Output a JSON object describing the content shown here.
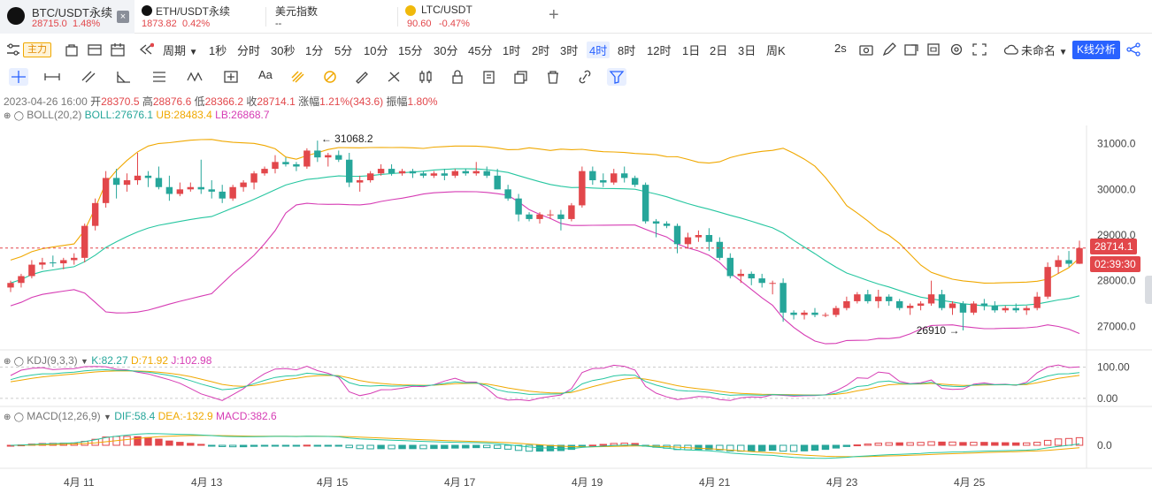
{
  "tabs": [
    {
      "name": "BTC/USDT永续",
      "price": "28715.0",
      "change": "1.48%",
      "close": "×"
    },
    {
      "name": "ETH/USDT永续",
      "price": "1873.82",
      "change": "0.42%"
    },
    {
      "name": "美元指数",
      "price": "--"
    },
    {
      "name": "LTC/USDT",
      "price": "90.60",
      "change": "-0.47%"
    }
  ],
  "add_tab": "+",
  "toolbar": {
    "zhuli": "主力",
    "period_label": "周期",
    "periods": [
      "1秒",
      "分时",
      "30秒",
      "1分",
      "5分",
      "10分",
      "15分",
      "30分",
      "45分",
      "1时",
      "2时",
      "3时",
      "4时",
      "8时",
      "12时",
      "1日",
      "2日",
      "3日",
      "周K"
    ],
    "active_period": "4时",
    "interval": "2s",
    "layout_name": "未命名",
    "kline_analysis": "K线分析",
    "text_tool": "Aa"
  },
  "ohlc": {
    "date": "2023-04-26 16:00",
    "open_label": "开",
    "open": "28370.5",
    "high_label": "高",
    "high": "28876.6",
    "low_label": "低",
    "low": "28366.2",
    "close_label": "收",
    "close": "28714.1",
    "change_label": "涨幅",
    "change": "1.21%(343.6)",
    "amp_label": "振幅",
    "amp": "1.80%"
  },
  "boll": {
    "name": "BOLL(20,2)",
    "mid": "BOLL:27676.1",
    "ub": "UB:28483.4",
    "lb": "LB:26868.7"
  },
  "kdj": {
    "name": "KDJ(9,3,3)",
    "k": "K:82.27",
    "d": "D:71.92",
    "j": "J:102.98"
  },
  "macd": {
    "name": "MACD(12,26,9)",
    "dif": "DIF:58.4",
    "dea": "DEA:-132.9",
    "macd": "MACD:382.6"
  },
  "price_axis": [
    "31000.0",
    "30000.0",
    "29000.0",
    "28000.0",
    "27000.0"
  ],
  "kdj_axis": [
    "100.00",
    "0.00"
  ],
  "macd_axis": [
    "0.0"
  ],
  "last_price": "28714.1",
  "countdown": "02:39:30",
  "annotations": {
    "high": "31068.2",
    "low": "26910"
  },
  "dates": [
    "4月 11",
    "4月 13",
    "4月 15",
    "4月 17",
    "4月 19",
    "4月 21",
    "4月 23",
    "4月 25"
  ],
  "colors": {
    "up": "#e2474b",
    "down": "#26a69a",
    "mid": "#26c6a0",
    "ub": "#f0a800",
    "lb": "#d63cb4",
    "accent": "#2962ff"
  },
  "chart_data": {
    "type": "candlestick",
    "interval": "4时",
    "y_range": [
      26600,
      31400
    ],
    "candles": [
      [
        27850,
        28000,
        27750,
        27950
      ],
      [
        27950,
        28150,
        27850,
        28100
      ],
      [
        28100,
        28450,
        28050,
        28350
      ],
      [
        28350,
        28500,
        28250,
        28400
      ],
      [
        28400,
        28550,
        28300,
        28380
      ],
      [
        28380,
        28500,
        28250,
        28450
      ],
      [
        28450,
        28600,
        28350,
        28500
      ],
      [
        28500,
        29250,
        28400,
        29200
      ],
      [
        29200,
        29800,
        29100,
        29700
      ],
      [
        29700,
        30400,
        29600,
        30250
      ],
      [
        30250,
        30450,
        29800,
        30100
      ],
      [
        30100,
        30350,
        29950,
        30200
      ],
      [
        30200,
        30800,
        30100,
        30300
      ],
      [
        30300,
        30400,
        30050,
        30250
      ],
      [
        30250,
        30500,
        30000,
        30050
      ],
      [
        30050,
        30300,
        29750,
        29900
      ],
      [
        29900,
        30150,
        29850,
        30000
      ],
      [
        30000,
        30150,
        29950,
        30050
      ],
      [
        30050,
        30650,
        29900,
        30000
      ],
      [
        30000,
        30200,
        29800,
        29950
      ],
      [
        29950,
        30100,
        29700,
        29800
      ],
      [
        29800,
        30100,
        29750,
        30050
      ],
      [
        30050,
        30200,
        29950,
        30150
      ],
      [
        30150,
        30400,
        30000,
        30350
      ],
      [
        30350,
        30500,
        30300,
        30450
      ],
      [
        30450,
        30750,
        30350,
        30600
      ],
      [
        30600,
        30700,
        30500,
        30550
      ],
      [
        30550,
        30600,
        30400,
        30500
      ],
      [
        30500,
        30900,
        30450,
        30850
      ],
      [
        30850,
        31068,
        30600,
        30700
      ],
      [
        30700,
        30800,
        30500,
        30750
      ],
      [
        30750,
        30850,
        30600,
        30650
      ],
      [
        30650,
        30800,
        30050,
        30150
      ],
      [
        30150,
        30300,
        29950,
        30200
      ],
      [
        30200,
        30400,
        30150,
        30350
      ],
      [
        30350,
        30550,
        30300,
        30450
      ],
      [
        30450,
        30550,
        30300,
        30350
      ],
      [
        30350,
        30450,
        30300,
        30400
      ],
      [
        30400,
        30450,
        30250,
        30350
      ],
      [
        30350,
        30400,
        30250,
        30300
      ],
      [
        30300,
        30400,
        30250,
        30350
      ],
      [
        30350,
        30450,
        30200,
        30300
      ],
      [
        30300,
        30450,
        30250,
        30400
      ],
      [
        30400,
        30450,
        30300,
        30350
      ],
      [
        30350,
        30600,
        30300,
        30400
      ],
      [
        30400,
        30500,
        30250,
        30300
      ],
      [
        30300,
        30450,
        30000,
        30000
      ],
      [
        30000,
        30100,
        29750,
        29800
      ],
      [
        29800,
        29900,
        29300,
        29450
      ],
      [
        29450,
        29500,
        29300,
        29350
      ],
      [
        29350,
        29500,
        29250,
        29450
      ],
      [
        29450,
        29550,
        29350,
        29450
      ],
      [
        29450,
        29550,
        29100,
        29350
      ],
      [
        29350,
        29700,
        29300,
        29650
      ],
      [
        29650,
        30500,
        29600,
        30400
      ],
      [
        30400,
        30500,
        30100,
        30200
      ],
      [
        30200,
        30350,
        30050,
        30150
      ],
      [
        30150,
        30450,
        30100,
        30350
      ],
      [
        30350,
        30500,
        30150,
        30250
      ],
      [
        30250,
        30300,
        30050,
        30100
      ],
      [
        30100,
        30150,
        29250,
        29300
      ],
      [
        29300,
        29350,
        28950,
        29250
      ],
      [
        29250,
        29300,
        29150,
        29200
      ],
      [
        29200,
        29250,
        28600,
        28800
      ],
      [
        28800,
        29050,
        28700,
        28950
      ],
      [
        28950,
        29100,
        28850,
        29000
      ],
      [
        29000,
        29150,
        28650,
        28850
      ],
      [
        28850,
        28950,
        28450,
        28500
      ],
      [
        28500,
        28600,
        28050,
        28100
      ],
      [
        28100,
        28250,
        27950,
        28150
      ],
      [
        28150,
        28200,
        27900,
        28050
      ],
      [
        28050,
        28150,
        27850,
        27950
      ],
      [
        27950,
        28000,
        27700,
        27950
      ],
      [
        27950,
        28050,
        27100,
        27300
      ],
      [
        27300,
        27350,
        27150,
        27250
      ],
      [
        27250,
        27350,
        27150,
        27300
      ],
      [
        27300,
        27400,
        27200,
        27250
      ],
      [
        27250,
        27300,
        27200,
        27250
      ],
      [
        27250,
        27450,
        27200,
        27400
      ],
      [
        27400,
        27650,
        27350,
        27550
      ],
      [
        27550,
        27750,
        27500,
        27700
      ],
      [
        27700,
        27800,
        27500,
        27550
      ],
      [
        27550,
        27800,
        27400,
        27650
      ],
      [
        27650,
        27700,
        27450,
        27550
      ],
      [
        27550,
        27600,
        27350,
        27400
      ],
      [
        27400,
        27500,
        27250,
        27450
      ],
      [
        27450,
        27550,
        27350,
        27500
      ],
      [
        27500,
        28000,
        27450,
        27700
      ],
      [
        27700,
        27800,
        27350,
        27400
      ],
      [
        27400,
        27550,
        27250,
        27500
      ],
      [
        27500,
        27550,
        26910,
        27300
      ],
      [
        27300,
        27550,
        27250,
        27500
      ],
      [
        27500,
        27600,
        27350,
        27450
      ],
      [
        27450,
        27550,
        27300,
        27350
      ],
      [
        27350,
        27450,
        27300,
        27400
      ],
      [
        27400,
        27500,
        27300,
        27350
      ],
      [
        27350,
        27450,
        27250,
        27400
      ],
      [
        27400,
        27750,
        27350,
        27650
      ],
      [
        27650,
        28400,
        27600,
        28300
      ],
      [
        28300,
        28550,
        28150,
        28450
      ],
      [
        28450,
        28650,
        28300,
        28370
      ],
      [
        28370,
        28876,
        28366,
        28714
      ]
    ],
    "boll": {
      "mid": 27676.1,
      "ub": 28483.4,
      "lb": 26868.7
    },
    "high_label": 31068.2,
    "low_label": 26910
  }
}
